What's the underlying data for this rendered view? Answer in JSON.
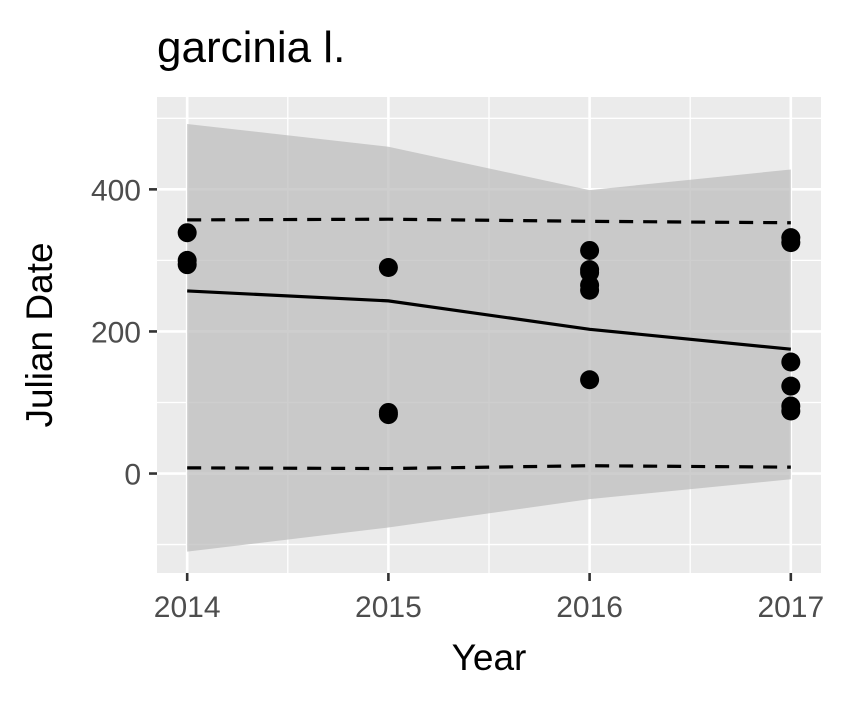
{
  "chart_data": {
    "type": "scatter",
    "title": "garcinia l.",
    "xlabel": "Year",
    "ylabel": "Julian Date",
    "x_ticks": [
      "2014",
      "2015",
      "2016",
      "2017"
    ],
    "y_ticks": [
      "0",
      "200",
      "400"
    ],
    "xlim": [
      2013.85,
      2017.15
    ],
    "ylim": [
      -140,
      530
    ],
    "grid": true,
    "legend": "none",
    "points": [
      {
        "x": 2014,
        "y": 339
      },
      {
        "x": 2014,
        "y": 300
      },
      {
        "x": 2014,
        "y": 294
      },
      {
        "x": 2015,
        "y": 290
      },
      {
        "x": 2015,
        "y": 86
      },
      {
        "x": 2015,
        "y": 83
      },
      {
        "x": 2016,
        "y": 314
      },
      {
        "x": 2016,
        "y": 287
      },
      {
        "x": 2016,
        "y": 283
      },
      {
        "x": 2016,
        "y": 265
      },
      {
        "x": 2016,
        "y": 258
      },
      {
        "x": 2016,
        "y": 132
      },
      {
        "x": 2017,
        "y": 332
      },
      {
        "x": 2017,
        "y": 325
      },
      {
        "x": 2017,
        "y": 157
      },
      {
        "x": 2017,
        "y": 123
      },
      {
        "x": 2017,
        "y": 95
      },
      {
        "x": 2017,
        "y": 88
      }
    ],
    "fit_line": {
      "x": [
        2014,
        2015,
        2016,
        2017
      ],
      "y": [
        257,
        243,
        203,
        175
      ]
    },
    "upper_dashed": {
      "x": [
        2014,
        2015,
        2016,
        2017
      ],
      "y": [
        357,
        358,
        355,
        353
      ]
    },
    "lower_dashed": {
      "x": [
        2014,
        2015,
        2016,
        2017
      ],
      "y": [
        8,
        7,
        11,
        9
      ]
    },
    "band": {
      "x": [
        2014,
        2015,
        2016,
        2017
      ],
      "upper": [
        492,
        460,
        399,
        428
      ],
      "lower": [
        -110,
        -76,
        -36,
        -8
      ]
    },
    "colors": {
      "panel": "#ebebeb",
      "grid_major": "#ffffff",
      "band": "#bebebe",
      "ink": "#000000",
      "tick": "#333333"
    }
  }
}
